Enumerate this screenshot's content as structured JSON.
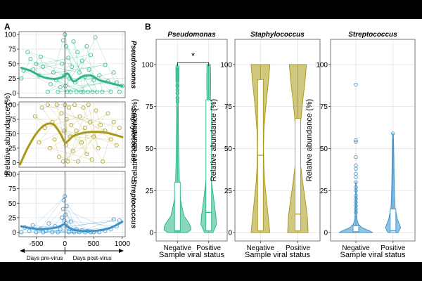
{
  "figure": {
    "panel_a_label": "A",
    "panel_b_label": "B"
  },
  "colors": {
    "pseudomonas": "#2bb58a",
    "staphylococcus": "#aa9a1a",
    "streptococcus": "#3d92c8",
    "grid": "#e3e3e3",
    "frame": "#555555"
  },
  "chart_data": [
    {
      "id": "A",
      "type": "scatter",
      "ylabel": "Relative abundance (%)",
      "xlim": [
        -800,
        1050
      ],
      "ylim": [
        -8,
        105
      ],
      "xticks": [
        -500,
        0,
        500,
        1000
      ],
      "xtick_labels": [
        "-500",
        "0",
        "500",
        "1000"
      ],
      "yticks": [
        0,
        25,
        50,
        75,
        100
      ],
      "ytick_labels": [
        "0",
        "25",
        "50",
        "75",
        "100"
      ],
      "arrow_left_label": "Days pre-virus",
      "arrow_right_label": "Days post-virus",
      "facets": [
        {
          "name": "Pseudomonas",
          "color_key": "pseudomonas",
          "smooth": {
            "x": [
              -760,
              -600,
              -400,
              -200,
              -50,
              50,
              150,
              300,
              450,
              600,
              750,
              900,
              1000
            ],
            "y": [
              43,
              38,
              28,
              24,
              27,
              33,
              20,
              28,
              30,
              22,
              18,
              14,
              12
            ]
          },
          "points": {
            "x": [
              -760,
              -720,
              -650,
              -600,
              -550,
              -500,
              -450,
              -420,
              -380,
              -300,
              -250,
              -200,
              -150,
              -120,
              -80,
              -50,
              -30,
              -10,
              0,
              10,
              20,
              40,
              60,
              80,
              100,
              120,
              150,
              180,
              200,
              220,
              250,
              280,
              300,
              320,
              350,
              380,
              400,
              420,
              450,
              480,
              500,
              530,
              560,
              600,
              650,
              700,
              750,
              800,
              850,
              900,
              950,
              1000
            ],
            "y": [
              25,
              38,
              70,
              58,
              40,
              50,
              30,
              62,
              45,
              2,
              15,
              35,
              22,
              2,
              10,
              50,
              90,
              30,
              100,
              12,
              80,
              2,
              60,
              25,
              2,
              45,
              88,
              18,
              2,
              70,
              35,
              2,
              55,
              2,
              28,
              80,
              2,
              40,
              65,
              2,
              22,
              95,
              2,
              30,
              2,
              48,
              20,
              2,
              35,
              18,
              2,
              12
            ]
          }
        },
        {
          "name": "Staphylococcus",
          "color_key": "staphylococcus",
          "smooth": {
            "x": [
              -780,
              -650,
              -500,
              -350,
              -200,
              -80,
              0,
              60,
              150,
              300,
              450,
              600,
              750,
              900,
              1000
            ],
            "y": [
              -3,
              25,
              50,
              65,
              66,
              50,
              35,
              38,
              46,
              51,
              53,
              53,
              51,
              47,
              44
            ],
            "y_clipped_at_bottom": true
          },
          "points": {
            "x": [
              -520,
              -450,
              -400,
              -350,
              -300,
              -260,
              -220,
              -180,
              -140,
              -100,
              -60,
              -30,
              -10,
              0,
              15,
              30,
              50,
              70,
              90,
              110,
              140,
              170,
              200,
              230,
              260,
              290,
              320,
              350,
              380,
              410,
              440,
              470,
              500,
              540,
              580,
              620,
              660,
              700,
              750,
              800,
              850,
              900,
              950
            ],
            "y": [
              80,
              35,
              95,
              60,
              100,
              25,
              70,
              40,
              100,
              10,
              85,
              2,
              55,
              100,
              30,
              75,
              2,
              95,
              45,
              65,
              20,
              100,
              55,
              2,
              80,
              35,
              95,
              60,
              15,
              100,
              70,
              5,
              45,
              90,
              25,
              65,
              2,
              55,
              85,
              40,
              70,
              30,
              60
            ]
          }
        },
        {
          "name": "Streptococcus",
          "color_key": "streptococcus",
          "smooth": {
            "x": [
              -760,
              -600,
              -450,
              -300,
              -150,
              -50,
              0,
              50,
              150,
              300,
              450,
              600,
              750,
              850,
              950,
              1000
            ],
            "y": [
              10,
              7,
              5,
              6,
              8,
              12,
              14,
              9,
              4,
              2,
              2,
              3,
              6,
              10,
              15,
              18
            ]
          },
          "points": {
            "x": [
              -760,
              -700,
              -620,
              -560,
              -500,
              -430,
              -380,
              -330,
              -280,
              -220,
              -170,
              -120,
              -80,
              -50,
              -30,
              -20,
              -10,
              0,
              10,
              20,
              30,
              50,
              70,
              100,
              130,
              160,
              200,
              250,
              300,
              350,
              400,
              450,
              500,
              600,
              700,
              800,
              850,
              900,
              950
            ],
            "y": [
              0,
              8,
              2,
              12,
              0,
              5,
              0,
              2,
              15,
              0,
              10,
              0,
              5,
              25,
              40,
              55,
              20,
              62,
              30,
              15,
              45,
              8,
              0,
              18,
              2,
              0,
              5,
              0,
              3,
              0,
              2,
              0,
              0,
              0,
              2,
              5,
              22,
              10,
              20
            ]
          }
        }
      ]
    },
    {
      "id": "B",
      "type": "violin",
      "xlabel": "Sample viral status",
      "ylabel": "Relative abundance (%)",
      "ylim": [
        -5,
        115
      ],
      "yticks": [
        0,
        25,
        50,
        75,
        100
      ],
      "ytick_labels": [
        "0",
        "25",
        "50",
        "75",
        "100"
      ],
      "categories": [
        "Negative",
        "Positive"
      ],
      "significance_label": "*",
      "panels": [
        {
          "name": "Pseudomonas",
          "color_key": "pseudomonas",
          "significant": true,
          "groups": [
            {
              "category": "Negative",
              "box": {
                "q1": 0.5,
                "median": 1,
                "q3": 30,
                "whisker_low": 0,
                "whisker_high": 75
              },
              "density_y": [
                0,
                2,
                5,
                10,
                20,
                30,
                40,
                50,
                60,
                70,
                80,
                90,
                98
              ],
              "density_w": [
                0.7,
                1.0,
                0.85,
                0.45,
                0.2,
                0.14,
                0.1,
                0.08,
                0.07,
                0.06,
                0.05,
                0.05,
                0.04
              ],
              "outliers": [
                78,
                80,
                83,
                85,
                87,
                88,
                90,
                91,
                92,
                93,
                94,
                95,
                96,
                97,
                98,
                98,
                99
              ]
            },
            {
              "category": "Positive",
              "box": {
                "q1": 1,
                "median": 12,
                "q3": 79,
                "whisker_low": 0,
                "whisker_high": 100
              },
              "density_y": [
                0,
                5,
                10,
                20,
                30,
                40,
                50,
                60,
                70,
                80,
                90,
                100
              ],
              "density_w": [
                0.3,
                0.55,
                0.5,
                0.35,
                0.2,
                0.12,
                0.09,
                0.09,
                0.1,
                0.12,
                0.14,
                0.12
              ],
              "outliers": []
            }
          ]
        },
        {
          "name": "Staphylococcus",
          "color_key": "staphylococcus",
          "significant": false,
          "groups": [
            {
              "category": "Negative",
              "box": {
                "q1": 1,
                "median": 46,
                "q3": 91,
                "whisker_low": 0,
                "whisker_high": 100
              },
              "density_y": [
                0,
                10,
                20,
                30,
                40,
                50,
                60,
                70,
                80,
                90,
                100
              ],
              "density_w": [
                0.55,
                0.45,
                0.35,
                0.25,
                0.2,
                0.18,
                0.2,
                0.27,
                0.36,
                0.47,
                0.55
              ],
              "outliers": []
            },
            {
              "category": "Positive",
              "box": {
                "q1": 1,
                "median": 11,
                "q3": 68,
                "whisker_low": 0,
                "whisker_high": 100
              },
              "density_y": [
                0,
                10,
                20,
                30,
                40,
                50,
                60,
                70,
                80,
                90,
                100
              ],
              "density_w": [
                0.6,
                0.55,
                0.42,
                0.28,
                0.16,
                0.1,
                0.12,
                0.2,
                0.3,
                0.42,
                0.5
              ],
              "outliers": []
            }
          ]
        },
        {
          "name": "Streptococcus",
          "color_key": "streptococcus",
          "significant": false,
          "groups": [
            {
              "category": "Negative",
              "box": {
                "q1": 0,
                "median": 0.5,
                "q3": 4,
                "whisker_low": 0,
                "whisker_high": 10
              },
              "density_y": [
                0,
                1,
                3,
                5,
                8,
                12,
                20,
                30
              ],
              "density_w": [
                1.0,
                0.8,
                0.35,
                0.15,
                0.06,
                0.04,
                0.02,
                0.01
              ],
              "outliers": [
                12,
                14,
                16,
                18,
                20,
                22,
                25,
                27,
                30,
                33,
                35,
                38,
                40,
                45,
                54,
                55,
                88
              ]
            },
            {
              "category": "Positive",
              "box": {
                "q1": 0,
                "median": 1,
                "q3": 14,
                "whisker_low": 0,
                "whisker_high": 58
              },
              "density_y": [
                0,
                3,
                8,
                15,
                25,
                35,
                45,
                55,
                59
              ],
              "density_w": [
                0.3,
                0.45,
                0.25,
                0.12,
                0.08,
                0.06,
                0.05,
                0.03,
                0.01
              ],
              "outliers": [
                59
              ]
            }
          ]
        }
      ]
    }
  ]
}
